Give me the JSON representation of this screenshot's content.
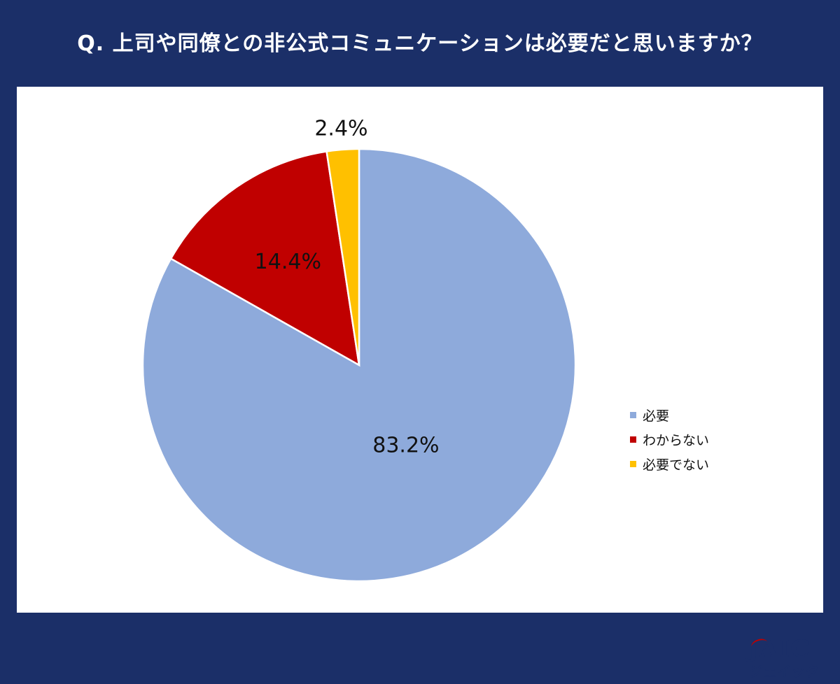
{
  "title": "Q. 上司や同僚との非公式コミュニケーションは必要だと思いますか？",
  "chart_data": {
    "type": "pie",
    "title": "Q. 上司や同僚との非公式コミュニケーションは必要だと思いますか？",
    "categories": [
      "必要",
      "わからない",
      "必要でない"
    ],
    "values": [
      83.2,
      14.4,
      2.4
    ],
    "labels": [
      "83.2%",
      "14.4%",
      "2.4%"
    ],
    "colors": [
      "#8eaadb",
      "#c00000",
      "#ffc000"
    ],
    "legend_position": "right",
    "start_angle": "top",
    "direction": "clockwise"
  },
  "legend": [
    {
      "label": "必要",
      "color": "#8eaadb"
    },
    {
      "label": "わからない",
      "color": "#c00000"
    },
    {
      "label": "必要でない",
      "color": "#ffc000"
    }
  ],
  "logo": {
    "main": "JAIC",
    "sub": "ジェイック"
  }
}
